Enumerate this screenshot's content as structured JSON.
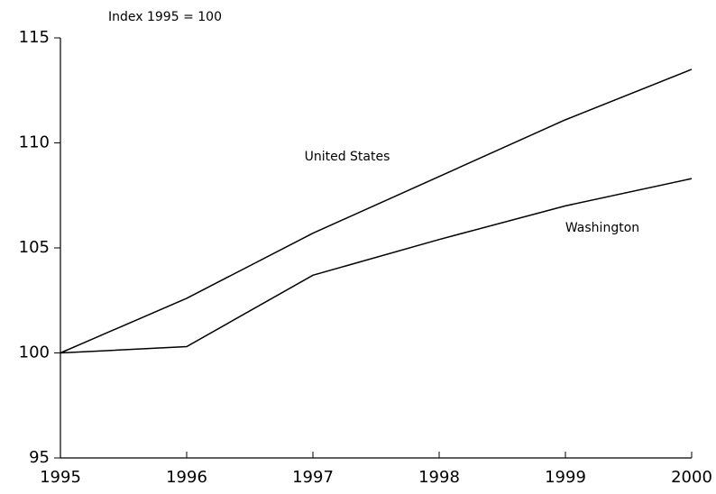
{
  "chart_data": {
    "type": "line",
    "y_axis_label": "Index 1995 = 100",
    "x": [
      1995,
      1996,
      1997,
      1998,
      1999,
      2000
    ],
    "series": [
      {
        "name": "United States",
        "color": "#000000",
        "values": [
          100,
          102.6,
          105.7,
          108.4,
          111.1,
          113.5
        ]
      },
      {
        "name": "Washington",
        "color": "#000000",
        "values": [
          100,
          100.3,
          103.7,
          105.4,
          107.0,
          108.3
        ]
      }
    ],
    "xlim": [
      1995,
      2000
    ],
    "xticks": [
      1995,
      1996,
      1997,
      1998,
      1999,
      2000
    ],
    "ylim": [
      95,
      115
    ],
    "yticks": [
      95,
      100,
      105,
      110,
      115
    ],
    "grid": false
  }
}
